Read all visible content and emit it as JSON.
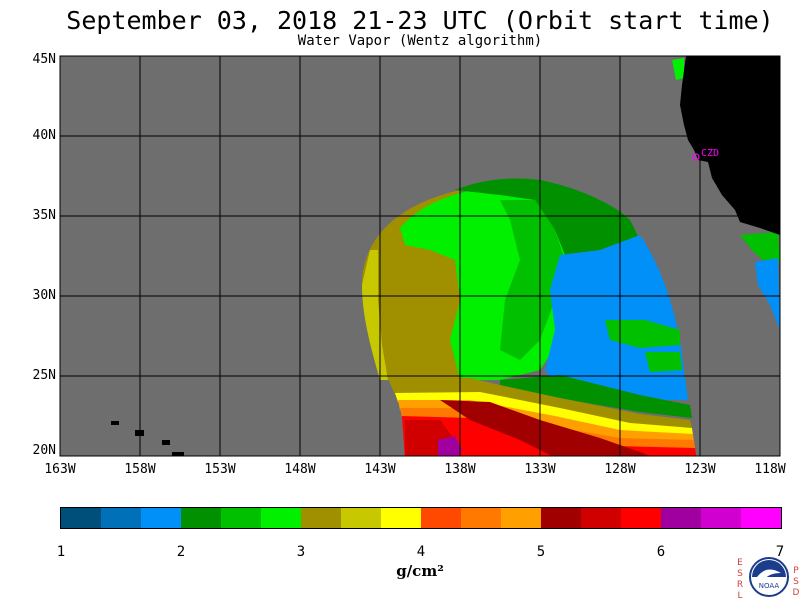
{
  "title": "September 03, 2018  21-23 UTC  (Orbit start time)",
  "subtitle": "Water Vapor (Wentz algorithm)",
  "map": {
    "latitudes": [
      "45N",
      "40N",
      "35N",
      "30N",
      "25N",
      "20N"
    ],
    "longitudes": [
      "163W",
      "158W",
      "153W",
      "148W",
      "143W",
      "138W",
      "133W",
      "128W",
      "123W",
      "118W"
    ],
    "station_label": "CZD",
    "colors": {
      "ocean_no_data": "#6e6e6e",
      "land": "#000000",
      "station": "#ff00ff"
    }
  },
  "colorbar": {
    "ticks": [
      "1",
      "2",
      "3",
      "4",
      "5",
      "6",
      "7"
    ],
    "unit": "g/cm²",
    "colors": [
      "#004e7a",
      "#0070b8",
      "#0090f8",
      "#009000",
      "#00c000",
      "#00f000",
      "#a09000",
      "#c8c800",
      "#ffff00",
      "#ff4800",
      "#ff7800",
      "#ffa000",
      "#a00000",
      "#d00000",
      "#ff0000",
      "#a000a0",
      "#d000d0",
      "#ff00ff"
    ]
  },
  "logo": {
    "left_letters": "ESRL",
    "right_letters": "PSD",
    "name": "NOAA"
  }
}
